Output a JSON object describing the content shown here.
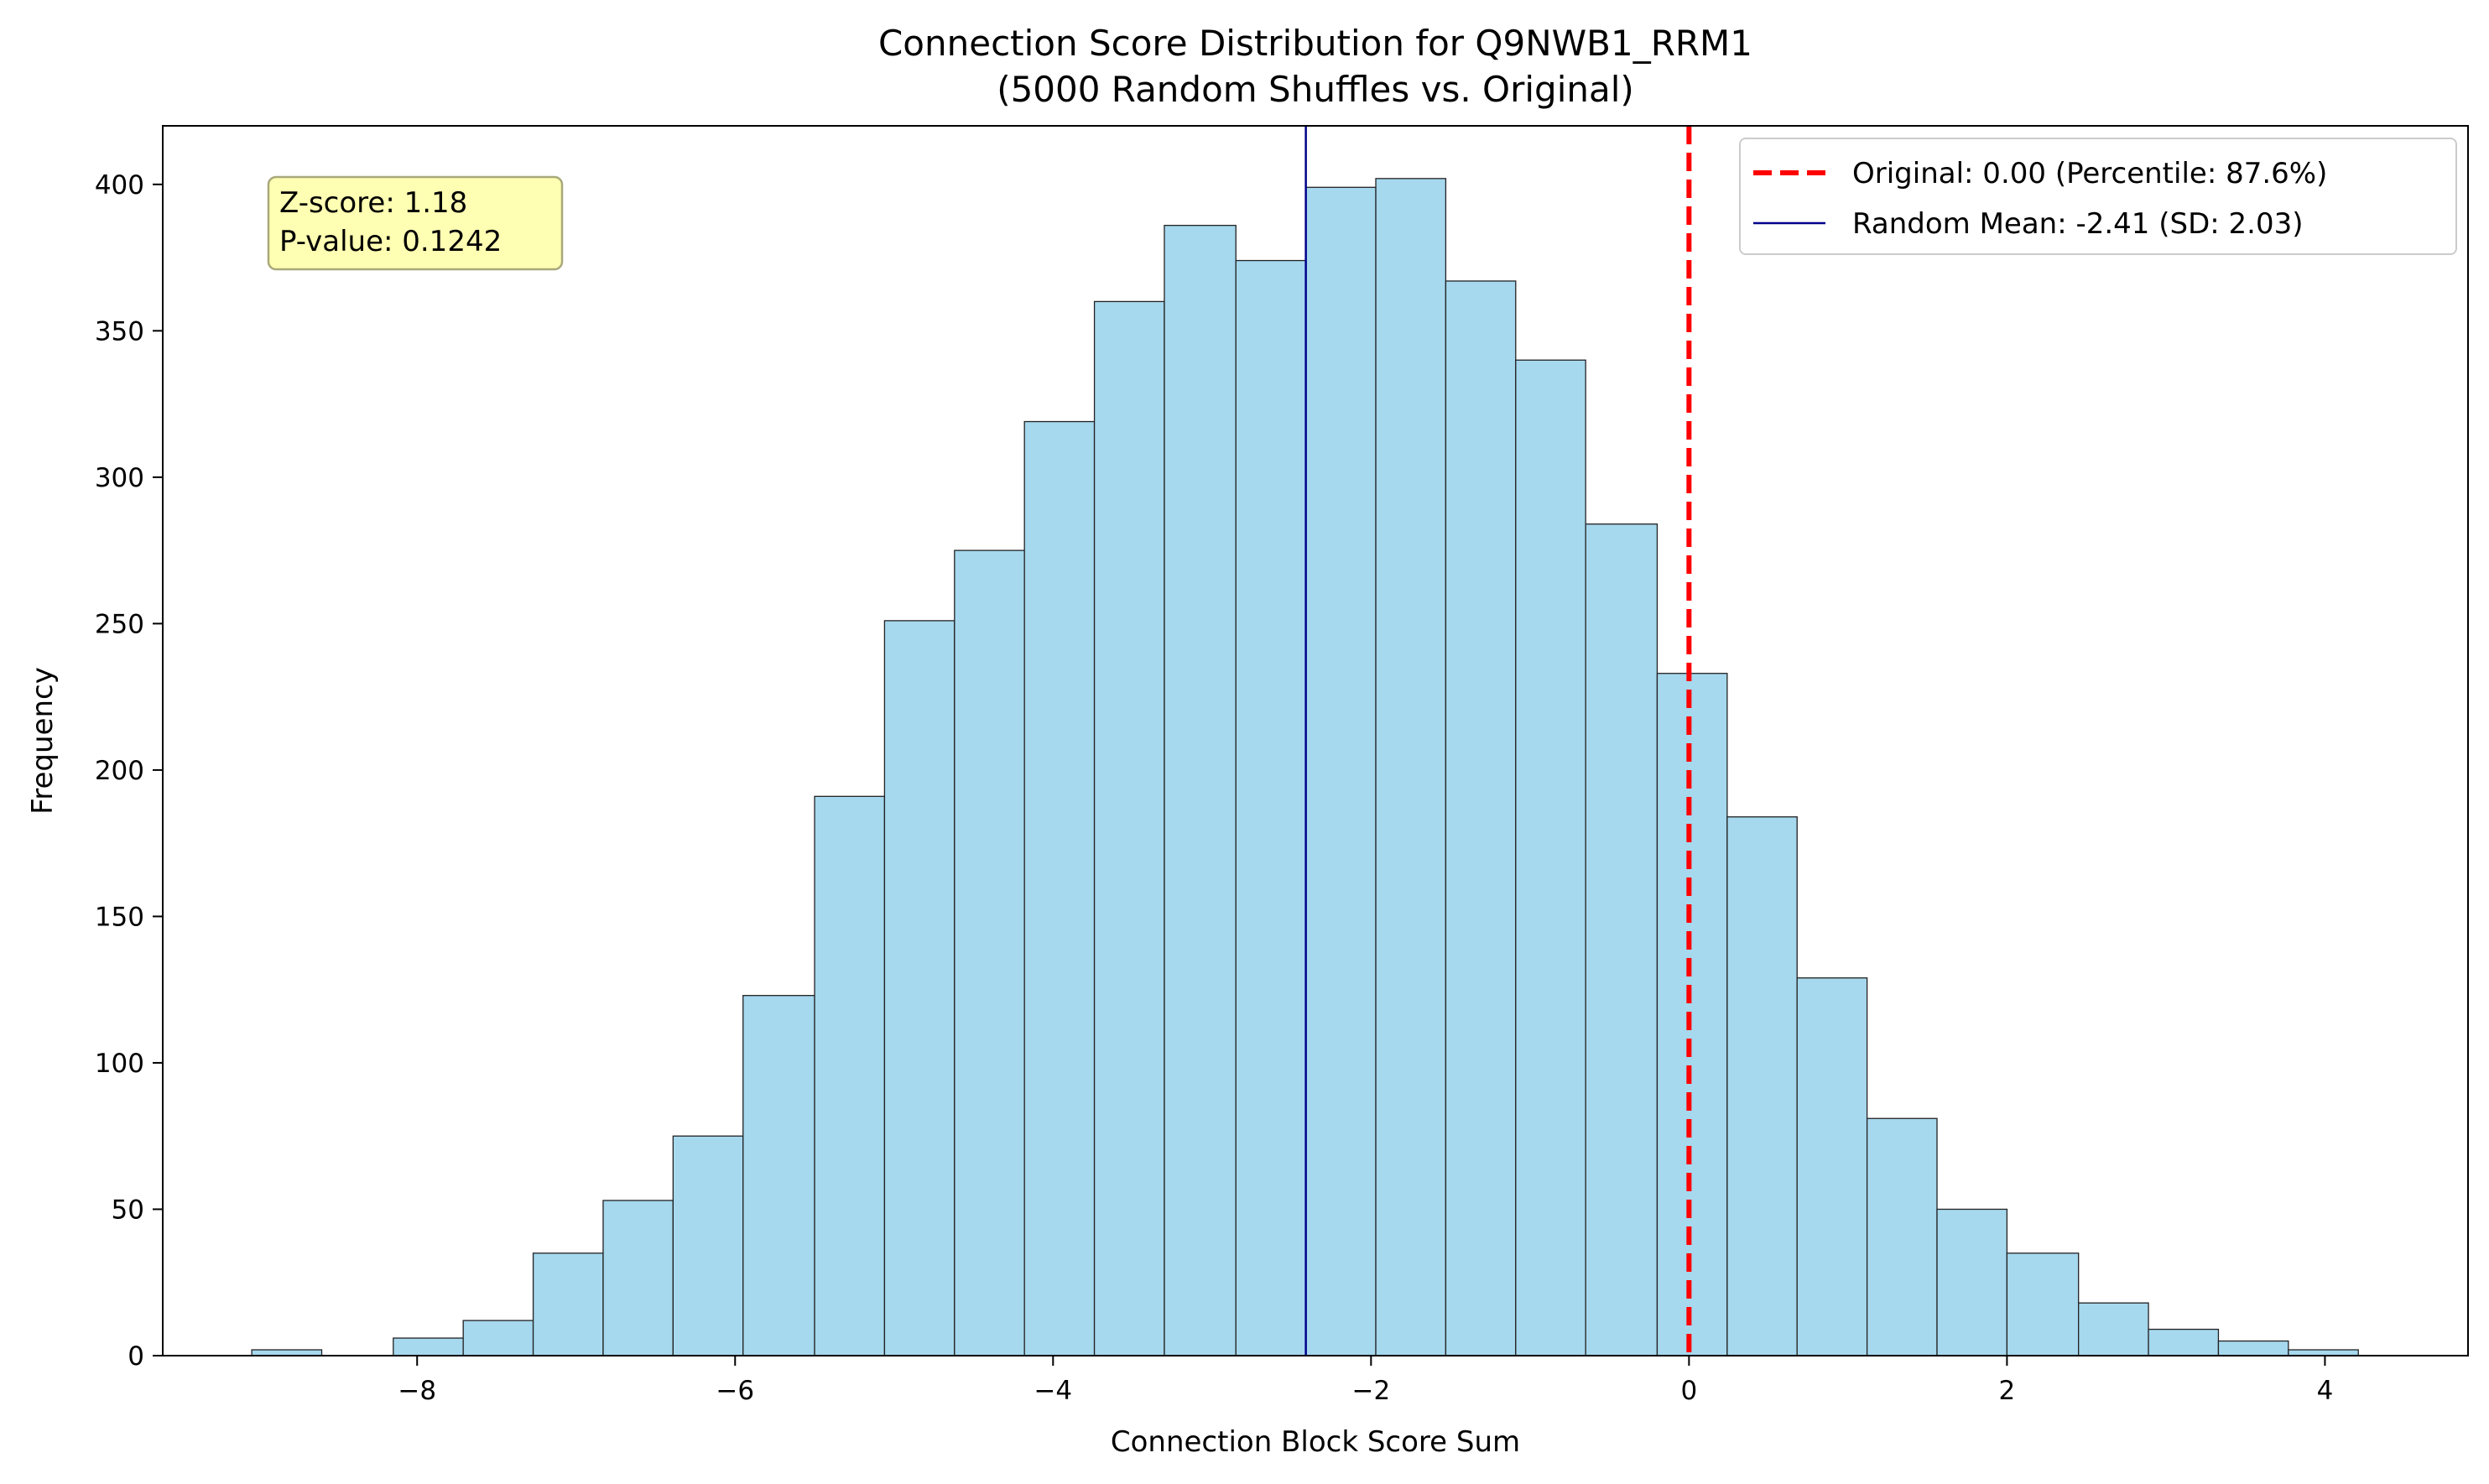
{
  "chart_data": {
    "type": "bar",
    "title": "Connection Score Distribution for Q9NWB1_RRM1",
    "subtitle": "(5000 Random Shuffles vs. Original)",
    "xlabel": "Connection Block Score Sum",
    "ylabel": "Frequency",
    "xlim": [
      -9.6,
      4.9
    ],
    "ylim": [
      0,
      420
    ],
    "xticks": [
      -8,
      -6,
      -4,
      -2,
      0,
      2,
      4
    ],
    "xtick_labels": [
      "−8",
      "−6",
      "−4",
      "−2",
      "0",
      "2",
      "4"
    ],
    "yticks": [
      0,
      50,
      100,
      150,
      200,
      250,
      300,
      350,
      400
    ],
    "ytick_labels": [
      "0",
      "50",
      "100",
      "150",
      "200",
      "250",
      "300",
      "350",
      "400"
    ],
    "grid": false,
    "bar_color": "#a6d8ee",
    "bar_edge_color": "#222222",
    "bins": [
      {
        "x0": -9.04,
        "x1": -8.6,
        "count": 2
      },
      {
        "x0": -8.6,
        "x1": -8.15,
        "count": 0
      },
      {
        "x0": -8.15,
        "x1": -7.71,
        "count": 6
      },
      {
        "x0": -7.71,
        "x1": -7.27,
        "count": 12
      },
      {
        "x0": -7.27,
        "x1": -6.83,
        "count": 35
      },
      {
        "x0": -6.83,
        "x1": -6.39,
        "count": 53
      },
      {
        "x0": -6.39,
        "x1": -5.95,
        "count": 75
      },
      {
        "x0": -5.95,
        "x1": -5.5,
        "count": 123
      },
      {
        "x0": -5.5,
        "x1": -5.06,
        "count": 191
      },
      {
        "x0": -5.06,
        "x1": -4.62,
        "count": 251
      },
      {
        "x0": -4.62,
        "x1": -4.18,
        "count": 275
      },
      {
        "x0": -4.18,
        "x1": -3.74,
        "count": 319
      },
      {
        "x0": -3.74,
        "x1": -3.3,
        "count": 360
      },
      {
        "x0": -3.3,
        "x1": -2.85,
        "count": 386
      },
      {
        "x0": -2.85,
        "x1": -2.41,
        "count": 374
      },
      {
        "x0": -2.41,
        "x1": -1.97,
        "count": 399
      },
      {
        "x0": -1.97,
        "x1": -1.53,
        "count": 402
      },
      {
        "x0": -1.53,
        "x1": -1.09,
        "count": 367
      },
      {
        "x0": -1.09,
        "x1": -0.65,
        "count": 340
      },
      {
        "x0": -0.65,
        "x1": -0.2,
        "count": 284
      },
      {
        "x0": -0.2,
        "x1": 0.24,
        "count": 233
      },
      {
        "x0": 0.24,
        "x1": 0.68,
        "count": 184
      },
      {
        "x0": 0.68,
        "x1": 1.12,
        "count": 129
      },
      {
        "x0": 1.12,
        "x1": 1.56,
        "count": 81
      },
      {
        "x0": 1.56,
        "x1": 2.0,
        "count": 50
      },
      {
        "x0": 2.0,
        "x1": 2.45,
        "count": 35
      },
      {
        "x0": 2.45,
        "x1": 2.89,
        "count": 18
      },
      {
        "x0": 2.89,
        "x1": 3.33,
        "count": 9
      },
      {
        "x0": 3.33,
        "x1": 3.77,
        "count": 5
      },
      {
        "x0": 3.77,
        "x1": 4.21,
        "count": 2
      }
    ],
    "reference_lines": [
      {
        "name": "original",
        "x": 0.0,
        "color": "#ff0000",
        "style": "dashed",
        "label": "Original: 0.00 (Percentile: 87.6%)"
      },
      {
        "name": "random-mean",
        "x": -2.41,
        "color": "#00008b",
        "style": "solid",
        "label": "Random Mean: -2.41 (SD: 2.03)"
      }
    ],
    "legend_position": "top-right",
    "stats_box": {
      "lines": [
        "Z-score: 1.18",
        "P-value: 0.1242"
      ],
      "background": "#ffffb3",
      "border": "#a8a87a",
      "position": "top-left"
    }
  }
}
